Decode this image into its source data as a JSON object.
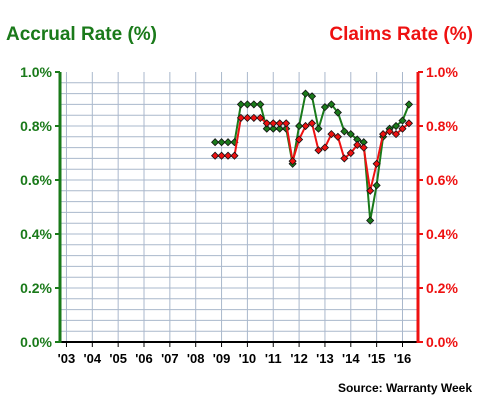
{
  "chart_data": {
    "type": "line",
    "left_axis_title": "Accrual Rate (%)",
    "right_axis_title": "Claims Rate (%)",
    "source": "Source: Warranty Week",
    "y_ticks": [
      "0.0%",
      "0.2%",
      "0.4%",
      "0.6%",
      "0.8%",
      "1.0%"
    ],
    "y_tick_values": [
      0.0,
      0.2,
      0.4,
      0.6,
      0.8,
      1.0
    ],
    "ylim": [
      0.0,
      1.0
    ],
    "x_ticks": [
      "'03",
      "'04",
      "'05",
      "'06",
      "'07",
      "'08",
      "'09",
      "'10",
      "'11",
      "'12",
      "'13",
      "'14",
      "'15",
      "'16"
    ],
    "x_tick_values": [
      2003,
      2004,
      2005,
      2006,
      2007,
      2008,
      2009,
      2010,
      2011,
      2012,
      2013,
      2014,
      2015,
      2016
    ],
    "xlim": [
      2002.75,
      2016.6
    ],
    "grid": true,
    "colors": {
      "accrual": "#1a7a1a",
      "claims": "#ee1111",
      "grid": "#aab8cc",
      "left_axis": "#1a7a1a",
      "right_axis": "#ee1111"
    },
    "series": [
      {
        "key": "accrual",
        "x": [
          2008.75,
          2009.0,
          2009.25,
          2009.5,
          2009.75,
          2010.0,
          2010.25,
          2010.5,
          2010.75,
          2011.0,
          2011.25,
          2011.5,
          2011.75,
          2012.0,
          2012.25,
          2012.5,
          2012.75,
          2013.0,
          2013.25,
          2013.5,
          2013.75,
          2014.0,
          2014.25,
          2014.5,
          2014.75,
          2015.0,
          2015.25,
          2015.5,
          2015.75,
          2016.0,
          2016.25
        ],
        "values": [
          0.74,
          0.74,
          0.74,
          0.74,
          0.88,
          0.88,
          0.88,
          0.88,
          0.79,
          0.79,
          0.79,
          0.79,
          0.66,
          0.8,
          0.92,
          0.91,
          0.79,
          0.87,
          0.88,
          0.85,
          0.78,
          0.77,
          0.75,
          0.74,
          0.45,
          0.58,
          0.76,
          0.79,
          0.8,
          0.82,
          0.88
        ]
      },
      {
        "key": "claims",
        "x": [
          2008.75,
          2009.0,
          2009.25,
          2009.5,
          2009.75,
          2010.0,
          2010.25,
          2010.5,
          2010.75,
          2011.0,
          2011.25,
          2011.5,
          2011.75,
          2012.0,
          2012.25,
          2012.5,
          2012.75,
          2013.0,
          2013.25,
          2013.5,
          2013.75,
          2014.0,
          2014.25,
          2014.5,
          2014.75,
          2015.0,
          2015.25,
          2015.5,
          2015.75,
          2016.0,
          2016.25
        ],
        "values": [
          0.69,
          0.69,
          0.69,
          0.69,
          0.83,
          0.83,
          0.83,
          0.83,
          0.81,
          0.81,
          0.81,
          0.81,
          0.67,
          0.75,
          0.8,
          0.81,
          0.71,
          0.72,
          0.77,
          0.76,
          0.68,
          0.7,
          0.73,
          0.72,
          0.56,
          0.66,
          0.77,
          0.78,
          0.77,
          0.79,
          0.81
        ]
      }
    ]
  }
}
